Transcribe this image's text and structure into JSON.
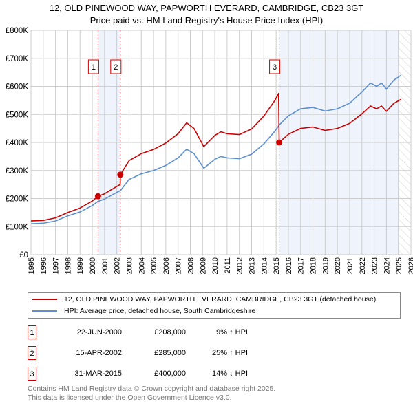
{
  "chart_data": {
    "type": "line",
    "title": "12, OLD PINEWOOD WAY, PAPWORTH EVERARD, CAMBRIDGE, CB23 3GT",
    "subtitle": "Price paid vs. HM Land Registry's House Price Index (HPI)",
    "xlim": [
      1995,
      2026
    ],
    "ylim": [
      0,
      800000
    ],
    "x_ticks": [
      "1995",
      "1996",
      "1997",
      "1998",
      "1999",
      "2000",
      "2001",
      "2002",
      "2003",
      "2004",
      "2005",
      "2006",
      "2007",
      "2008",
      "2009",
      "2010",
      "2011",
      "2012",
      "2013",
      "2014",
      "2015",
      "2016",
      "2017",
      "2018",
      "2019",
      "2020",
      "2021",
      "2022",
      "2023",
      "2024",
      "2025",
      "2026"
    ],
    "y_ticks": [
      {
        "v": 0,
        "label": "£0"
      },
      {
        "v": 100000,
        "label": "£100K"
      },
      {
        "v": 200000,
        "label": "£200K"
      },
      {
        "v": 300000,
        "label": "£300K"
      },
      {
        "v": 400000,
        "label": "£400K"
      },
      {
        "v": 500000,
        "label": "£500K"
      },
      {
        "v": 600000,
        "label": "£600K"
      },
      {
        "v": 700000,
        "label": "£700K"
      },
      {
        "v": 800000,
        "label": "£800K"
      }
    ],
    "grid": true,
    "series": [
      {
        "name": "12, OLD PINEWOOD WAY, PAPWORTH EVERARD, CAMBRIDGE, CB23 3GT (detached house)",
        "color": "#cc0000",
        "x": [
          1995,
          1996,
          1997,
          1998,
          1999,
          2000,
          2000.47,
          2001,
          2002,
          2002.28,
          2002.29,
          2003,
          2004,
          2005,
          2006,
          2007,
          2007.7,
          2008.3,
          2009.1,
          2010,
          2010.5,
          2011,
          2012,
          2013,
          2014,
          2014.9,
          2015.2,
          2015.25,
          2016,
          2017,
          2018,
          2019,
          2020,
          2021,
          2022,
          2022.7,
          2023.2,
          2023.6,
          2024,
          2024.6,
          2025.2
        ],
        "y": [
          120000,
          122000,
          131000,
          150000,
          166000,
          191000,
          208000,
          217000,
          243000,
          250000,
          285000,
          335000,
          360000,
          375000,
          398000,
          431000,
          470000,
          450000,
          385000,
          425000,
          438000,
          431000,
          428000,
          448000,
          494000,
          550000,
          575000,
          400000,
          429000,
          450000,
          455000,
          443000,
          450000,
          468000,
          502000,
          530000,
          520000,
          530000,
          511000,
          539000,
          554000
        ]
      },
      {
        "name": "HPI: Average price, detached house, South Cambridgeshire",
        "color": "#5b8fd0",
        "x": [
          1995,
          1996,
          1997,
          1998,
          1999,
          2000,
          2000.47,
          2001,
          2002,
          2002.29,
          2003,
          2004,
          2005,
          2006,
          2007,
          2007.7,
          2008.3,
          2009.1,
          2010,
          2010.5,
          2011,
          2012,
          2013,
          2014,
          2014.9,
          2015.25,
          2016,
          2017,
          2018,
          2019,
          2020,
          2021,
          2022,
          2022.7,
          2023.2,
          2023.6,
          2024,
          2024.6,
          2025.2
        ],
        "y": [
          110000,
          112000,
          120000,
          138000,
          152000,
          175000,
          190000,
          198000,
          222000,
          228000,
          268000,
          288000,
          300000,
          318000,
          345000,
          376000,
          360000,
          308000,
          340000,
          350000,
          345000,
          342000,
          358000,
          395000,
          440000,
          462000,
          495000,
          520000,
          525000,
          512000,
          520000,
          540000,
          580000,
          612000,
          600000,
          612000,
          590000,
          622000,
          640000
        ]
      }
    ],
    "sales": [
      {
        "n": "1",
        "x": 2000.47,
        "y": 208000,
        "date": "22-JUN-2000",
        "price": "£208,000",
        "hpi": "9% ↑ HPI"
      },
      {
        "n": "2",
        "x": 2002.29,
        "y": 285000,
        "date": "15-APR-2002",
        "price": "£285,000",
        "hpi": "25% ↑ HPI"
      },
      {
        "n": "3",
        "x": 2015.25,
        "y": 400000,
        "date": "31-MAR-2015",
        "price": "£400,000",
        "hpi": "14% ↓ HPI"
      }
    ],
    "forecast_start": 2025.0,
    "legend_placement": "below"
  },
  "footer": {
    "line1": "Contains HM Land Registry data © Crown copyright and database right 2025.",
    "line2": "This data is licensed under the Open Government Licence v3.0."
  }
}
